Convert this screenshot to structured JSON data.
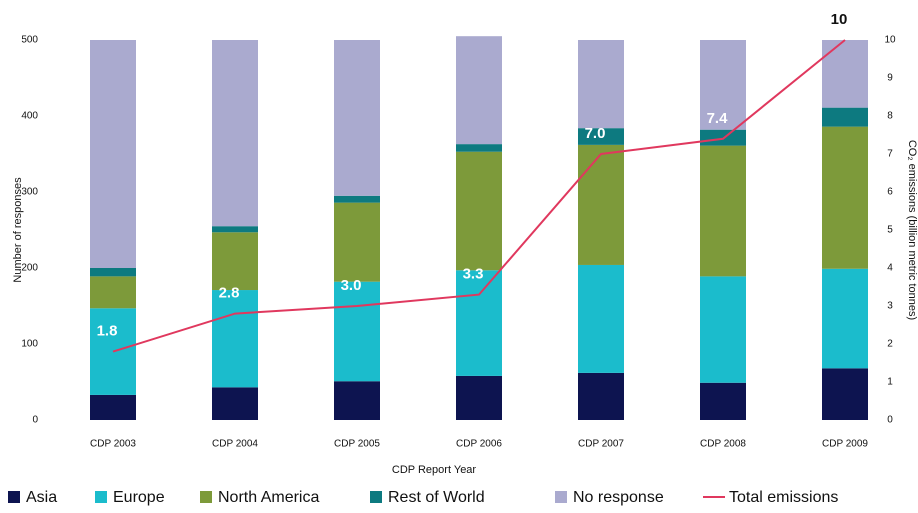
{
  "chart_data": {
    "type": "bar",
    "stacked": true,
    "categories": [
      "CDP 2003",
      "CDP 2004",
      "CDP 2005",
      "CDP 2006",
      "CDP 2007",
      "CDP 2008",
      "CDP 2009"
    ],
    "x_label": "CDP Report Year",
    "y_label": "Number of responses",
    "y2_label": "CO₂ emissions (billion metric tonnes)",
    "ylim": [
      0,
      500
    ],
    "yticks": [
      0,
      100,
      200,
      300,
      400,
      500
    ],
    "y2lim": [
      0,
      10
    ],
    "y2ticks": [
      0,
      1,
      2,
      3,
      4,
      5,
      6,
      7,
      8,
      9,
      10
    ],
    "series": [
      {
        "name": "Asia",
        "color": "#0d1450",
        "values": [
          33,
          43,
          51,
          58,
          62,
          49,
          68
        ]
      },
      {
        "name": "Europe",
        "color": "#1bbccc",
        "values": [
          114,
          128,
          131,
          139,
          142,
          140,
          131
        ]
      },
      {
        "name": "North America",
        "color": "#7d9a3a",
        "values": [
          42,
          76,
          104,
          156,
          158,
          172,
          187
        ]
      },
      {
        "name": "Rest of World",
        "color": "#0d7a80",
        "values": [
          11,
          8,
          9,
          10,
          22,
          21,
          25
        ]
      },
      {
        "name": "No response",
        "color": "#aaaacf",
        "values": [
          300,
          245,
          205,
          142,
          116,
          118,
          89
        ]
      },
      {
        "name": "Total emissions",
        "color": "#e0385e",
        "type": "line",
        "axis": "y2",
        "values": [
          1.8,
          2.8,
          3.0,
          3.3,
          7.0,
          7.4,
          10
        ],
        "value_labels": [
          "1.8",
          "2.8",
          "3.0",
          "3.3",
          "7.0",
          "7.4",
          "10"
        ]
      }
    ]
  }
}
